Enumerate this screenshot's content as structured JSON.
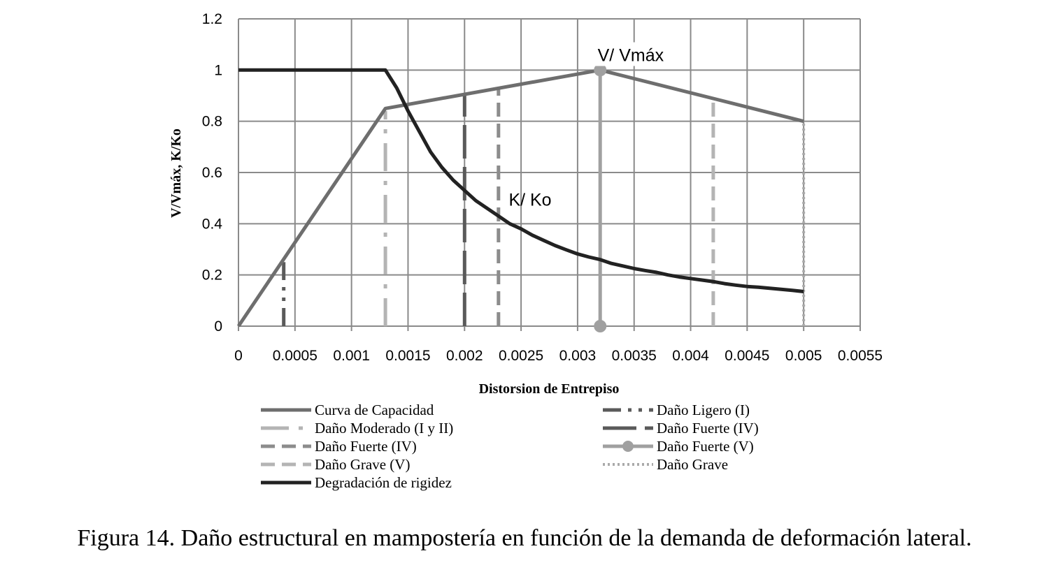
{
  "caption": "Figura 14. Daño estructural en mampostería en función de la demanda de deformación lateral.",
  "chart_data": {
    "type": "line",
    "xlabel": "Distorsion de Entrepiso",
    "ylabel": "V/Vmáx, K/Ko",
    "xlim": [
      0,
      0.0055
    ],
    "ylim": [
      0,
      1.2
    ],
    "x_ticks": [
      "0",
      "0.0005",
      "0.001",
      "0.0015",
      "0.002",
      "0.0025",
      "0.003",
      "0.0035",
      "0.004",
      "0.0045",
      "0.005",
      "0.0055"
    ],
    "y_ticks": [
      "0",
      "0.2",
      "0.4",
      "0.6",
      "0.8",
      "1",
      "1.2"
    ],
    "grid": true,
    "legend_position": "bottom",
    "annotations": [
      {
        "text": "V/ Vmáx",
        "x": 0.00347,
        "y": 1.035
      },
      {
        "text": "K/ Ko",
        "x": 0.00258,
        "y": 0.47
      }
    ],
    "series": [
      {
        "name": "Curva de Capacidad",
        "color": "#6e6e6e",
        "style": "solid",
        "x": [
          0,
          0.0013,
          0.0032,
          0.005
        ],
        "y": [
          0,
          0.85,
          1.0,
          0.8
        ]
      },
      {
        "name": "Daño Ligero (I)",
        "color": "#5a5a5a",
        "style": "dash-dot-dot",
        "x": [
          0.0004,
          0.0004
        ],
        "y": [
          0,
          0.25
        ]
      },
      {
        "name": "Daño Moderado (I y II)",
        "color": "#b4b4b4",
        "style": "dash-dot",
        "x": [
          0.0013,
          0.0013
        ],
        "y": [
          0,
          0.84
        ]
      },
      {
        "name": "Daño Fuerte (IV)",
        "color": "#5a5a5a",
        "style": "long-dash",
        "x": [
          0.002,
          0.002
        ],
        "y": [
          0,
          0.9
        ]
      },
      {
        "name": "Daño Fuerte (IV)",
        "color": "#8c8c8c",
        "style": "dash",
        "x": [
          0.0023,
          0.0023
        ],
        "y": [
          0,
          0.93
        ]
      },
      {
        "name": "Daño Fuerte (V)",
        "color": "#a0a0a0",
        "style": "solid-marker",
        "x": [
          0.0032,
          0.0032
        ],
        "y": [
          0,
          1.0
        ]
      },
      {
        "name": "Daño Grave (V)",
        "color": "#b4b4b4",
        "style": "dash",
        "x": [
          0.0042,
          0.0042
        ],
        "y": [
          0,
          0.89
        ]
      },
      {
        "name": "Daño Grave",
        "color": "#aaaaaa",
        "style": "dotted",
        "x": [
          0.005,
          0.005
        ],
        "y": [
          0,
          0.8
        ]
      },
      {
        "name": "Degradación de rigidez",
        "color": "#222222",
        "style": "solid",
        "x": [
          0,
          0.0013,
          0.0014,
          0.0015,
          0.0016,
          0.0017,
          0.0018,
          0.0019,
          0.002,
          0.0021,
          0.0022,
          0.0023,
          0.0024,
          0.0025,
          0.0026,
          0.0027,
          0.0028,
          0.0029,
          0.003,
          0.0031,
          0.0032,
          0.0033,
          0.0034,
          0.0035,
          0.0036,
          0.0037,
          0.0038,
          0.0039,
          0.004,
          0.0041,
          0.0042,
          0.0043,
          0.0044,
          0.0045,
          0.0046,
          0.0047,
          0.0048,
          0.0049,
          0.005
        ],
        "y": [
          1.0,
          1.0,
          0.93,
          0.84,
          0.76,
          0.68,
          0.62,
          0.57,
          0.53,
          0.49,
          0.46,
          0.43,
          0.4,
          0.38,
          0.355,
          0.335,
          0.315,
          0.298,
          0.282,
          0.27,
          0.26,
          0.245,
          0.235,
          0.225,
          0.217,
          0.21,
          0.2,
          0.192,
          0.186,
          0.18,
          0.174,
          0.166,
          0.16,
          0.155,
          0.152,
          0.148,
          0.144,
          0.14,
          0.135
        ]
      }
    ]
  }
}
